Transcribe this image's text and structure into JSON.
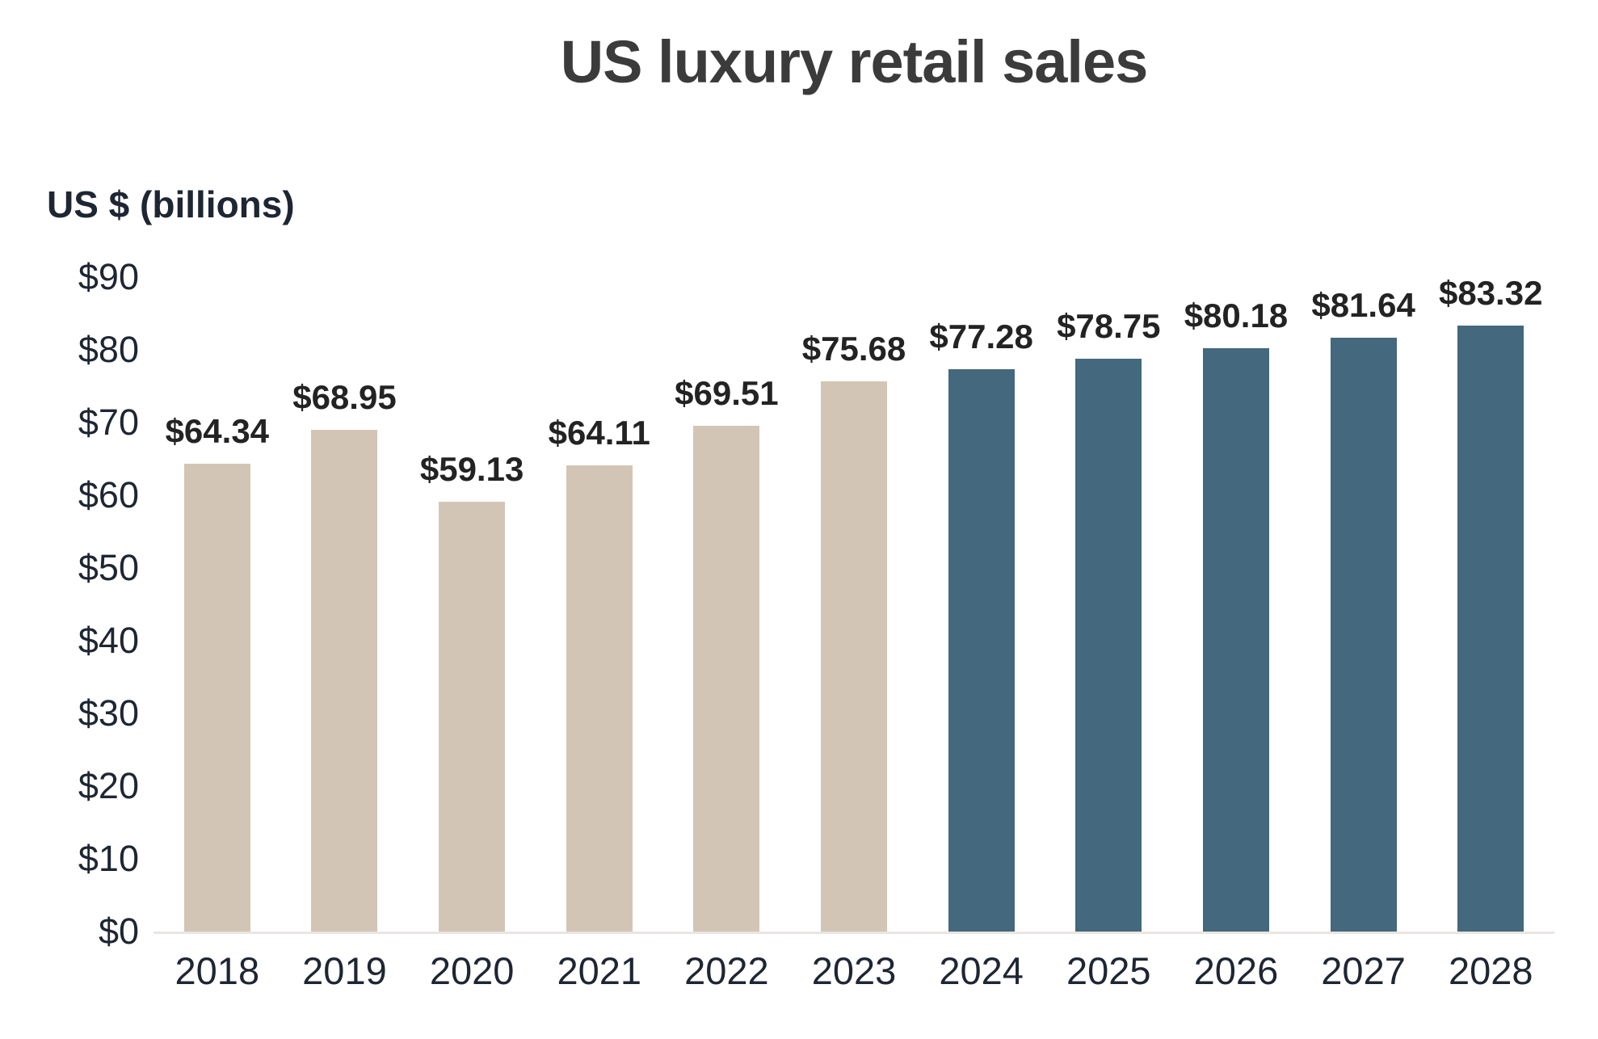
{
  "chart_data": {
    "type": "bar",
    "title": "US luxury retail sales",
    "ylabel": "US $ (billions)",
    "xlabel": "",
    "categories": [
      "2018",
      "2019",
      "2020",
      "2021",
      "2022",
      "2023",
      "2024",
      "2025",
      "2026",
      "2027",
      "2028"
    ],
    "values": [
      64.34,
      68.95,
      59.13,
      64.11,
      69.51,
      75.68,
      77.28,
      78.75,
      80.18,
      81.64,
      83.32
    ],
    "value_labels": [
      "$64.34",
      "$68.95",
      "$59.13",
      "$64.11",
      "$69.51",
      "$75.68",
      "$77.28",
      "$78.75",
      "$80.18",
      "$81.64",
      "$83.32"
    ],
    "groups": [
      "actual",
      "actual",
      "actual",
      "actual",
      "actual",
      "actual",
      "forecast",
      "forecast",
      "forecast",
      "forecast",
      "forecast"
    ],
    "colors": {
      "actual": "#d3c5b5",
      "forecast": "#44687d"
    },
    "ylim": [
      0,
      90
    ],
    "y_ticks": [
      "$90",
      "$80",
      "$70",
      "$60",
      "$50",
      "$40",
      "$30",
      "$20",
      "$10",
      "$0"
    ],
    "grid": "none",
    "legend": "none",
    "axis_line_color": "#e9e6e2",
    "text_colors": {
      "title": "#3b3b3b",
      "axis_labels": "#1e2633",
      "value_labels": "#232323"
    }
  }
}
